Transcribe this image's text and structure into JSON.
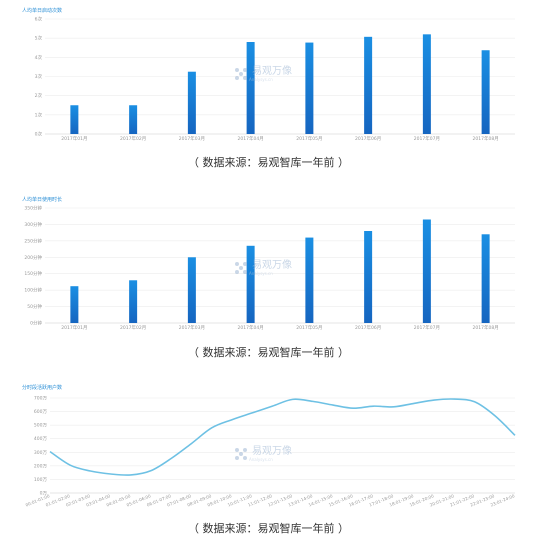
{
  "watermark": {
    "name": "易观万像",
    "sub": "Analysys.cn"
  },
  "chart_data": [
    {
      "type": "bar",
      "title": "人均单日启动次数",
      "categories": [
        "2017年01月",
        "2017年02月",
        "2017年03月",
        "2017年04月",
        "2017年05月",
        "2017年06月",
        "2017年07月",
        "2017年08月"
      ],
      "series": [
        {
          "values": [
            1.5,
            1.5,
            3.25,
            4.8,
            4.77,
            5.07,
            5.2,
            4.37
          ]
        }
      ],
      "yticks": [
        "0次",
        "1次",
        "2次",
        "3次",
        "4次",
        "5次",
        "6次"
      ],
      "ylim": [
        0,
        6
      ],
      "grid": true,
      "caption": "（ 数据来源：易观智库一年前 ）"
    },
    {
      "type": "bar",
      "title": "人均单日使用时长",
      "categories": [
        "2017年01月",
        "2017年02月",
        "2017年03月",
        "2017年04月",
        "2017年05月",
        "2017年06月",
        "2017年07月",
        "2017年08月"
      ],
      "series": [
        {
          "values": [
            112,
            130,
            200,
            235,
            260,
            280,
            315,
            270
          ]
        }
      ],
      "yticks": [
        "0分钟",
        "50分钟",
        "100分钟",
        "150分钟",
        "200分钟",
        "250分钟",
        "300分钟",
        "350分钟"
      ],
      "ylim": [
        0,
        350
      ],
      "grid": true,
      "caption": "（ 数据来源：易观智库一年前 ）"
    },
    {
      "type": "line",
      "title": "分时段活跃用户数",
      "categories": [
        "00:01-01:00",
        "01:01-02:00",
        "02:01-03:00",
        "03:01-04:00",
        "04:01-05:00",
        "05:01-06:00",
        "06:01-07:00",
        "07:01-08:00",
        "08:01-09:00",
        "09:01-10:00",
        "10:01-11:00",
        "11:01-12:00",
        "12:01-13:00",
        "13:01-14:00",
        "14:01-15:00",
        "15:01-16:00",
        "16:01-17:00",
        "17:01-18:00",
        "18:01-19:00",
        "19:01-20:00",
        "20:01-21:00",
        "21:01-22:00",
        "22:01-23:00",
        "23:01-24:00"
      ],
      "series": [
        {
          "values": [
            305,
            205,
            162,
            140,
            133,
            165,
            255,
            365,
            480,
            540,
            590,
            640,
            690,
            675,
            648,
            625,
            640,
            635,
            660,
            685,
            692,
            672,
            570,
            425
          ]
        }
      ],
      "yticks": [
        "0万",
        "100万",
        "200万",
        "300万",
        "400万",
        "500万",
        "600万",
        "700万"
      ],
      "ylim": [
        0,
        700
      ],
      "grid": true,
      "caption": "（ 数据来源：易观智库一年前 ）"
    }
  ]
}
